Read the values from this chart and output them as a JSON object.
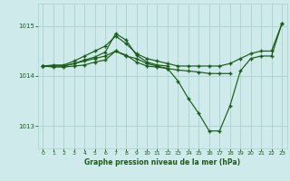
{
  "title": "Graphe pression niveau de la mer (hPa)",
  "bg_color": "#ceeaea",
  "line_color": "#1a5c1a",
  "grid_color": "#b0d4d4",
  "axis_label_color": "#1a5c1a",
  "xlim": [
    -0.5,
    23.5
  ],
  "ylim": [
    1012.55,
    1015.45
  ],
  "yticks": [
    1013,
    1014,
    1015
  ],
  "xticks": [
    0,
    1,
    2,
    3,
    4,
    5,
    6,
    7,
    8,
    9,
    10,
    11,
    12,
    13,
    14,
    15,
    16,
    17,
    18,
    19,
    20,
    21,
    22,
    23
  ],
  "curves": [
    {
      "x": [
        0,
        1,
        2,
        3,
        4,
        5,
        6,
        7,
        8,
        9,
        10,
        11,
        12,
        13,
        14,
        15,
        16,
        17,
        18,
        19,
        20,
        21,
        22,
        23
      ],
      "y": [
        1014.2,
        1014.2,
        1014.2,
        1014.25,
        1014.3,
        1014.35,
        1014.4,
        1014.5,
        1014.4,
        1014.35,
        1014.25,
        1014.2,
        1014.15,
        1013.9,
        1013.55,
        1013.25,
        1012.9,
        1012.9,
        1013.4,
        1014.1,
        1014.35,
        1014.4,
        1014.4,
        1015.05
      ]
    },
    {
      "x": [
        0,
        1,
        2,
        3,
        4,
        5,
        6,
        7,
        8,
        9,
        10,
        11,
        12,
        13,
        14,
        15,
        16,
        17,
        18,
        19,
        20,
        21,
        22,
        23
      ],
      "y": [
        1014.2,
        1014.22,
        1014.22,
        1014.3,
        1014.4,
        1014.5,
        1014.6,
        1014.8,
        1014.65,
        1014.45,
        1014.35,
        1014.3,
        1014.25,
        1014.2,
        1014.2,
        1014.2,
        1014.2,
        1014.2,
        1014.25,
        1014.35,
        1014.45,
        1014.5,
        1014.5,
        1015.05
      ]
    },
    {
      "x": [
        0,
        1,
        2,
        3,
        4,
        5,
        6,
        7,
        8,
        9,
        10,
        11,
        12
      ],
      "y": [
        1014.2,
        1014.2,
        1014.2,
        1014.25,
        1014.32,
        1014.38,
        1014.48,
        1014.85,
        1014.72,
        1014.42,
        1014.28,
        1014.22,
        1014.2
      ]
    },
    {
      "x": [
        0,
        1,
        2,
        3,
        4,
        5,
        6,
        7,
        8,
        9,
        10,
        11,
        12,
        13,
        14,
        15,
        16,
        17,
        18
      ],
      "y": [
        1014.2,
        1014.18,
        1014.18,
        1014.2,
        1014.22,
        1014.28,
        1014.32,
        1014.5,
        1014.42,
        1014.28,
        1014.2,
        1014.18,
        1014.15,
        1014.12,
        1014.1,
        1014.08,
        1014.05,
        1014.05,
        1014.05
      ]
    }
  ]
}
